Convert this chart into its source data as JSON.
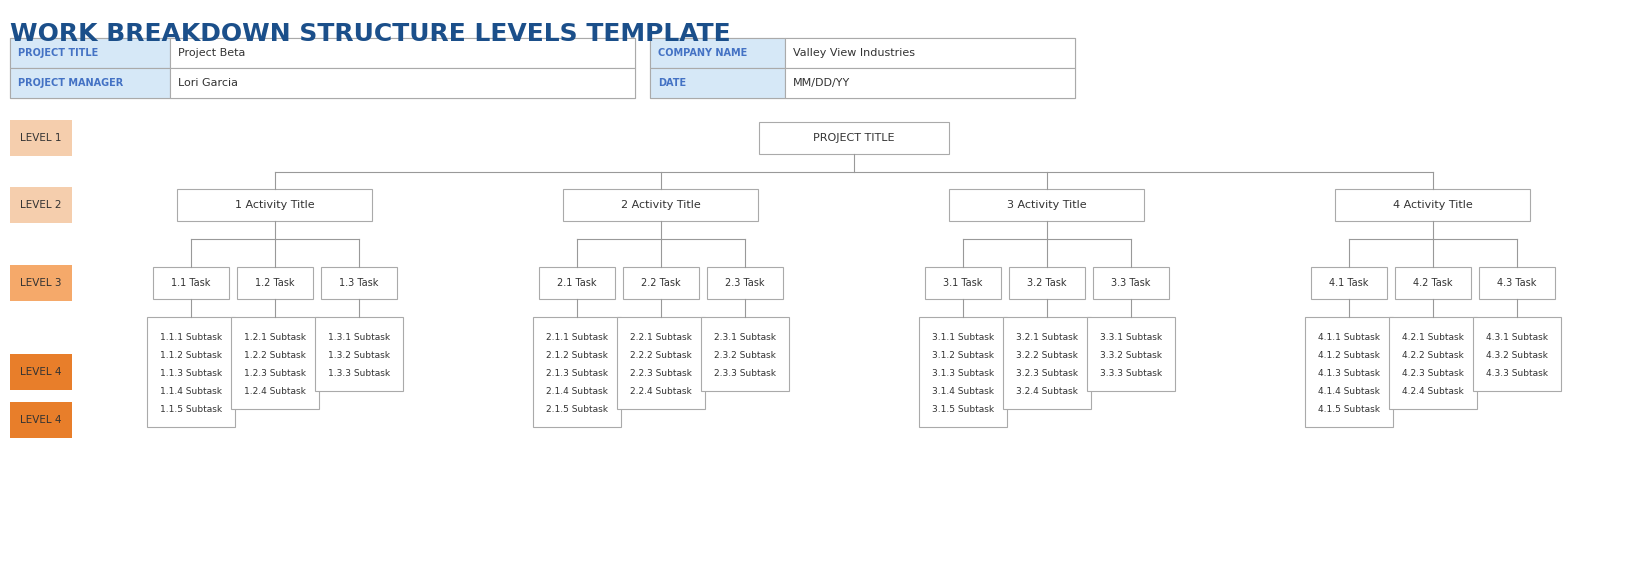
{
  "title": "WORK BREAKDOWN STRUCTURE LEVELS TEMPLATE",
  "title_color": "#1B4F8A",
  "title_fontsize": 18,
  "header_bg_color": "#D6E8F7",
  "header_label_color": "#4472C4",
  "header_fields": [
    {
      "label": "PROJECT TITLE",
      "value": "Project Beta"
    },
    {
      "label": "PROJECT MANAGER",
      "value": "Lori Garcia"
    }
  ],
  "header_fields2": [
    {
      "label": "COMPANY NAME",
      "value": "Valley View Industries"
    },
    {
      "label": "DATE",
      "value": "MM/DD/YY"
    }
  ],
  "level_labels": [
    "LEVEL 1",
    "LEVEL 2",
    "LEVEL 3",
    "LEVEL 4"
  ],
  "level_colors": [
    "#F5CEAD",
    "#F5CEAD",
    "#F5A96A",
    "#E87E2A"
  ],
  "box_edge_color": "#AAAAAA",
  "line_color": "#999999",
  "project_title": "PROJECT TITLE",
  "activities": [
    "1 Activity Title",
    "2 Activity Title",
    "3 Activity Title",
    "4 Activity Title"
  ],
  "tasks": [
    [
      "1.1 Task",
      "1.2 Task",
      "1.3 Task"
    ],
    [
      "2.1 Task",
      "2.2 Task",
      "2.3 Task"
    ],
    [
      "3.1 Task",
      "3.2 Task",
      "3.3 Task"
    ],
    [
      "4.1 Task",
      "4.2 Task",
      "4.3 Task"
    ]
  ],
  "subtasks": [
    [
      [
        "1.1.1 Subtask",
        "1.1.2 Subtask",
        "1.1.3 Subtask",
        "1.1.4 Subtask",
        "1.1.5 Subtask"
      ],
      [
        "1.2.1 Subtask",
        "1.2.2 Subtask",
        "1.2.3 Subtask",
        "1.2.4 Subtask"
      ],
      [
        "1.3.1 Subtask",
        "1.3.2 Subtask",
        "1.3.3 Subtask"
      ]
    ],
    [
      [
        "2.1.1 Subtask",
        "2.1.2 Subtask",
        "2.1.3 Subtask",
        "2.1.4 Subtask",
        "2.1.5 Subtask"
      ],
      [
        "2.2.1 Subtask",
        "2.2.2 Subtask",
        "2.2.3 Subtask",
        "2.2.4 Subtask"
      ],
      [
        "2.3.1 Subtask",
        "2.3.2 Subtask",
        "2.3.3 Subtask"
      ]
    ],
    [
      [
        "3.1.1 Subtask",
        "3.1.2 Subtask",
        "3.1.3 Subtask",
        "3.1.4 Subtask",
        "3.1.5 Subtask"
      ],
      [
        "3.2.1 Subtask",
        "3.2.2 Subtask",
        "3.2.3 Subtask",
        "3.2.4 Subtask"
      ],
      [
        "3.3.1 Subtask",
        "3.3.2 Subtask",
        "3.3.3 Subtask"
      ]
    ],
    [
      [
        "4.1.1 Subtask",
        "4.1.2 Subtask",
        "4.1.3 Subtask",
        "4.1.4 Subtask",
        "4.1.5 Subtask"
      ],
      [
        "4.2.1 Subtask",
        "4.2.2 Subtask",
        "4.2.3 Subtask",
        "4.2.4 Subtask"
      ],
      [
        "4.3.1 Subtask",
        "4.3.2 Subtask",
        "4.3.3 Subtask"
      ]
    ]
  ]
}
